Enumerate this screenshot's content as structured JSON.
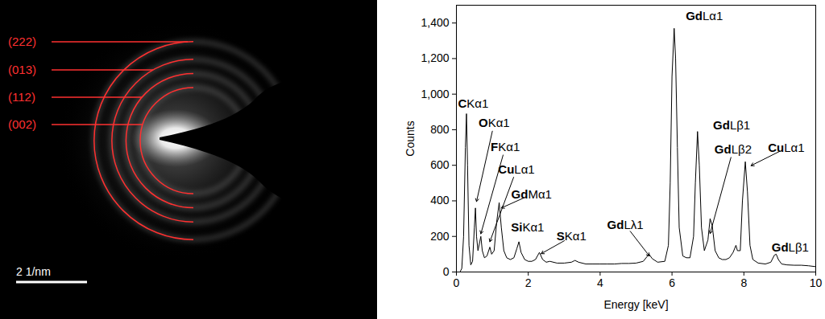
{
  "diffraction_pattern": {
    "rings": [
      {
        "label": "(222)",
        "radius": 2.8
      },
      {
        "label": "(013)",
        "radius": 2.3
      },
      {
        "label": "(112)",
        "radius": 1.9
      },
      {
        "label": "(002)",
        "radius": 1.5
      }
    ],
    "scale_bar": {
      "label": "2 1/nm",
      "length": 2
    }
  },
  "chart_data": {
    "type": "line",
    "x_label": "Energy [keV]",
    "y_label": "Counts",
    "xlim": [
      0,
      10
    ],
    "xticks": [
      0,
      2,
      4,
      6,
      8,
      10
    ],
    "ylim": [
      0,
      1500
    ],
    "yticks": [
      0,
      200,
      400,
      600,
      800,
      1000,
      1200,
      1400
    ],
    "color": "#000000",
    "x": [
      0.1,
      0.15,
      0.2,
      0.25,
      0.28,
      0.31,
      0.35,
      0.4,
      0.45,
      0.5,
      0.53,
      0.56,
      0.6,
      0.65,
      0.68,
      0.72,
      0.78,
      0.85,
      0.93,
      0.98,
      1.05,
      1.12,
      1.19,
      1.25,
      1.32,
      1.4,
      1.5,
      1.6,
      1.68,
      1.74,
      1.8,
      1.9,
      2.0,
      2.1,
      2.2,
      2.31,
      2.4,
      2.5,
      2.6,
      2.8,
      3.0,
      3.2,
      3.3,
      3.4,
      3.6,
      3.8,
      4.0,
      4.2,
      4.4,
      4.6,
      4.8,
      5.0,
      5.2,
      5.36,
      5.45,
      5.6,
      5.8,
      5.9,
      5.95,
      6.0,
      6.06,
      6.1,
      6.15,
      6.2,
      6.3,
      6.4,
      6.5,
      6.6,
      6.65,
      6.71,
      6.76,
      6.82,
      6.9,
      7.0,
      7.06,
      7.12,
      7.2,
      7.3,
      7.4,
      7.5,
      7.6,
      7.7,
      7.78,
      7.82,
      7.9,
      7.96,
      8.04,
      8.1,
      8.17,
      8.25,
      8.4,
      8.6,
      8.75,
      8.85,
      8.9,
      8.96,
      9.05,
      9.2,
      9.4,
      9.6,
      9.8,
      10.0
    ],
    "values": [
      0,
      20,
      200,
      700,
      890,
      600,
      150,
      40,
      60,
      250,
      360,
      200,
      120,
      170,
      200,
      120,
      80,
      90,
      140,
      100,
      120,
      280,
      390,
      250,
      120,
      80,
      70,
      80,
      130,
      170,
      110,
      70,
      60,
      60,
      70,
      110,
      70,
      55,
      60,
      50,
      50,
      55,
      65,
      55,
      45,
      45,
      45,
      45,
      45,
      48,
      48,
      50,
      60,
      100,
      75,
      55,
      60,
      150,
      500,
      1100,
      1370,
      1200,
      700,
      250,
      90,
      80,
      80,
      200,
      500,
      790,
      600,
      250,
      120,
      180,
      300,
      260,
      120,
      80,
      70,
      70,
      80,
      110,
      150,
      120,
      120,
      400,
      620,
      450,
      150,
      70,
      50,
      45,
      55,
      95,
      100,
      70,
      45,
      40,
      38,
      38,
      35,
      30
    ],
    "annotations": [
      {
        "element": "C",
        "line": "Kα1",
        "x": 0.47,
        "y": 944
      },
      {
        "element": "O",
        "line": "Kα1",
        "x": 1.05,
        "y": 836,
        "arrow_to": [
          0.56,
          396
        ]
      },
      {
        "element": "F",
        "line": "Kα1",
        "x": 1.36,
        "y": 701,
        "arrow_to": [
          0.68,
          215
        ]
      },
      {
        "element": "Cu",
        "line": "Lα1",
        "x": 1.67,
        "y": 575,
        "arrow_to": [
          0.93,
          170
        ]
      },
      {
        "element": "Gd",
        "line": "Mα1",
        "x": 2.09,
        "y": 436,
        "arrow_to": [
          1.25,
          360
        ]
      },
      {
        "element": "Si",
        "line": "Kα1",
        "x": 1.98,
        "y": 252
      },
      {
        "element": "S",
        "line": "Kα1",
        "x": 3.2,
        "y": 198,
        "arrow_to": [
          2.36,
          103
        ]
      },
      {
        "element": "Gd",
        "line": "Lλ1",
        "x": 4.7,
        "y": 265,
        "arrow_to": [
          5.37,
          90
        ]
      },
      {
        "element": "Gd",
        "line": "Lα1",
        "x": 6.9,
        "y": 1438
      },
      {
        "element": "Gd",
        "line": "Lβ1",
        "x": 7.66,
        "y": 822
      },
      {
        "element": "Gd",
        "line": "Lβ2",
        "x": 7.7,
        "y": 688,
        "arrow_to": [
          7.06,
          216
        ]
      },
      {
        "element": "Cu",
        "line": "Lα1",
        "x": 9.18,
        "y": 697,
        "arrow_to": [
          8.2,
          598
        ]
      },
      {
        "element": "Gd",
        "line": "Lβ1",
        "x": 9.29,
        "y": 139
      }
    ]
  }
}
